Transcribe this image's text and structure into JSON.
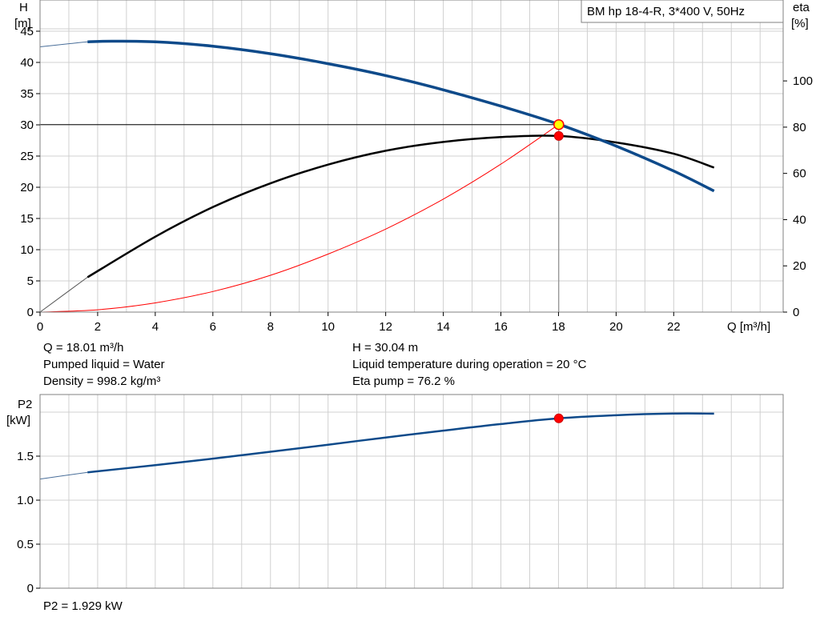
{
  "chart_data": [
    {
      "type": "line",
      "title": "BM hp  18-4-R, 3*400 V, 50Hz",
      "xlabel": "Q [m³/h]",
      "ylabel": [
        "H",
        "[m]"
      ],
      "ylabel_right": [
        "eta",
        "[%]"
      ],
      "xlim": [
        0,
        25.8
      ],
      "ylim": [
        0,
        50
      ],
      "ylim_right": [
        0,
        135
      ],
      "xticks": [
        0,
        2,
        4,
        6,
        8,
        10,
        12,
        14,
        16,
        18,
        20,
        22
      ],
      "yticks": [
        0,
        5,
        10,
        15,
        20,
        25,
        30,
        35,
        40,
        45
      ],
      "yticks_right": [
        0,
        20,
        40,
        60,
        80,
        100
      ],
      "grid": true,
      "series": [
        {
          "name": "H",
          "axis": "left",
          "color": "#0e4a8a",
          "x": [
            1.65,
            2.5,
            4,
            6,
            8,
            10,
            12,
            14,
            16,
            18,
            20,
            22,
            23.4
          ],
          "y": [
            43.3,
            43.4,
            43.3,
            42.6,
            41.4,
            39.8,
            37.9,
            35.6,
            33.0,
            30.1,
            26.6,
            22.6,
            19.4
          ],
          "extension": {
            "x": [
              0,
              1,
              1.65
            ],
            "y": [
              42.5,
              43.0,
              43.3
            ]
          }
        },
        {
          "name": "eta",
          "axis": "right",
          "color": "#000000",
          "x": [
            1.65,
            4,
            6,
            8,
            10,
            12,
            14,
            16,
            18,
            20,
            22,
            23.4
          ],
          "y": [
            15.1,
            32.6,
            45.4,
            55.7,
            63.8,
            69.8,
            73.6,
            75.7,
            76.2,
            73.4,
            68.5,
            62.5
          ],
          "extension": {
            "x": [
              0,
              1.65
            ],
            "y": [
              0,
              15.1
            ]
          }
        },
        {
          "name": "system curve",
          "axis": "left",
          "color": "#ff0000",
          "x": [
            0,
            2,
            4,
            6,
            8,
            10,
            12,
            14,
            16,
            18
          ],
          "y": [
            0,
            0.37,
            1.48,
            3.3,
            5.9,
            9.3,
            13.3,
            18.1,
            23.7,
            30.04
          ]
        }
      ],
      "operating_point": {
        "q": 18.01,
        "h": 30.04,
        "eta": 76.2
      },
      "annotations": [
        {
          "id": "q",
          "text": "Q = 18.01 m³/h"
        },
        {
          "id": "h",
          "text": "H = 30.04 m"
        },
        {
          "id": "liquid",
          "text": "Pumped liquid = Water"
        },
        {
          "id": "temp",
          "text": "Liquid temperature during operation = 20 °C"
        },
        {
          "id": "density",
          "text": "Density = 998.2 kg/m³"
        },
        {
          "id": "eta",
          "text": "Eta pump = 76.2 %"
        }
      ]
    },
    {
      "type": "line",
      "title": "",
      "xlabel": "",
      "ylabel": [
        "P2",
        "[kW]"
      ],
      "xlim": [
        0,
        25.8
      ],
      "ylim": [
        0,
        2.2
      ],
      "yticks": [
        0,
        0.5,
        1.0,
        1.5
      ],
      "yticks_labels": [
        "0",
        "0.5",
        "1.0",
        "1.5"
      ],
      "grid": true,
      "series": [
        {
          "name": "P2",
          "color": "#0e4a8a",
          "x": [
            1.65,
            4,
            6,
            8,
            10,
            12,
            14,
            16,
            18,
            20,
            22,
            23.4
          ],
          "y": [
            1.316,
            1.398,
            1.472,
            1.55,
            1.63,
            1.712,
            1.79,
            1.865,
            1.929,
            1.965,
            1.984,
            1.983
          ],
          "extension": {
            "x": [
              0,
              1.65
            ],
            "y": [
              1.24,
              1.316
            ]
          }
        }
      ],
      "operating_point": {
        "q": 18.01,
        "p2": 1.929
      },
      "annotations": [
        {
          "id": "p2",
          "text": "P2 = 1.929 kW"
        }
      ]
    }
  ]
}
